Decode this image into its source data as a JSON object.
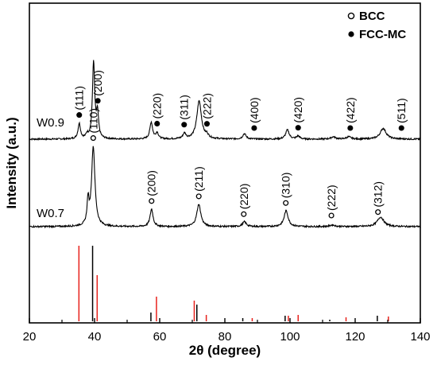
{
  "chart_data": {
    "type": "line",
    "xlabel": "2θ (degree)",
    "ylabel": "Intensity (a.u.)",
    "xlim": [
      20,
      140
    ],
    "x_ticks": [
      20,
      40,
      60,
      80,
      100,
      120,
      140
    ],
    "grid": false,
    "legend": {
      "placement": "top-right",
      "entries": [
        {
          "marker": "open-circle",
          "label": "BCC"
        },
        {
          "marker": "filled-circle",
          "label": "FCC-MC"
        }
      ]
    },
    "series": [
      {
        "name": "W0.9",
        "baseline": 0.0,
        "peaks": [
          {
            "x": 35.3,
            "h": 0.2,
            "w": 0.45
          },
          {
            "x": 37.7,
            "h": 0.05,
            "w": 0.4
          },
          {
            "x": 39.7,
            "h": 1.0,
            "w": 0.42
          },
          {
            "x": 40.9,
            "h": 0.32,
            "w": 0.4
          },
          {
            "x": 57.4,
            "h": 0.22,
            "w": 0.5
          },
          {
            "x": 59.2,
            "h": 0.08,
            "w": 0.5
          },
          {
            "x": 67.6,
            "h": 0.07,
            "w": 0.55
          },
          {
            "x": 72.1,
            "h": 0.5,
            "w": 0.85
          },
          {
            "x": 74.5,
            "h": 0.04,
            "w": 0.55
          },
          {
            "x": 86.0,
            "h": 0.07,
            "w": 0.6
          },
          {
            "x": 99.2,
            "h": 0.12,
            "w": 0.65
          },
          {
            "x": 102.5,
            "h": 0.04,
            "w": 0.6
          },
          {
            "x": 113.3,
            "h": 0.03,
            "w": 0.8
          },
          {
            "x": 118.0,
            "h": 0.03,
            "w": 0.8
          },
          {
            "x": 128.6,
            "h": 0.14,
            "w": 1.1
          }
        ]
      },
      {
        "name": "W0.7",
        "baseline": 0.0,
        "peaks": [
          {
            "x": 38.0,
            "h": 0.3,
            "w": 0.35
          },
          {
            "x": 39.6,
            "h": 1.0,
            "w": 0.62
          },
          {
            "x": 57.5,
            "h": 0.22,
            "w": 0.55
          },
          {
            "x": 72.0,
            "h": 0.28,
            "w": 0.75
          },
          {
            "x": 86.0,
            "h": 0.06,
            "w": 0.7
          },
          {
            "x": 98.8,
            "h": 0.2,
            "w": 0.75
          },
          {
            "x": 113.0,
            "h": 0.02,
            "w": 0.9
          },
          {
            "x": 127.8,
            "h": 0.12,
            "w": 1.2
          }
        ]
      }
    ],
    "reference_lines": {
      "red": [
        {
          "x": 35.2,
          "h": 0.95
        },
        {
          "x": 40.8,
          "h": 0.58
        },
        {
          "x": 59.0,
          "h": 0.31
        },
        {
          "x": 70.6,
          "h": 0.26
        },
        {
          "x": 74.3,
          "h": 0.08
        },
        {
          "x": 88.4,
          "h": 0.04
        },
        {
          "x": 99.5,
          "h": 0.07
        },
        {
          "x": 102.5,
          "h": 0.08
        },
        {
          "x": 117.2,
          "h": 0.05
        },
        {
          "x": 130.2,
          "h": 0.06
        }
      ],
      "black": [
        {
          "x": 39.4,
          "h": 0.95
        },
        {
          "x": 57.3,
          "h": 0.11
        },
        {
          "x": 71.4,
          "h": 0.21
        },
        {
          "x": 85.5,
          "h": 0.04
        },
        {
          "x": 98.5,
          "h": 0.07
        },
        {
          "x": 112.2,
          "h": 0.02
        },
        {
          "x": 126.8,
          "h": 0.07
        }
      ]
    },
    "annotations": {
      "W0.9": [
        {
          "label": "(111)",
          "x": 35.3,
          "marker": "filled"
        },
        {
          "label": "(200)",
          "x": 41.0,
          "marker": "filled"
        },
        {
          "label": "(220)",
          "x": 59.2,
          "marker": "filled"
        },
        {
          "label": "(311)",
          "x": 67.5,
          "marker": "filled"
        },
        {
          "label": "(222)",
          "x": 74.5,
          "marker": "filled"
        },
        {
          "label": "(400)",
          "x": 89.0,
          "marker": "filled"
        },
        {
          "label": "(420)",
          "x": 102.5,
          "marker": "filled"
        },
        {
          "label": "(422)",
          "x": 118.5,
          "marker": "filled"
        },
        {
          "label": "(511)",
          "x": 134.2,
          "marker": "filled"
        }
      ],
      "W0.7": [
        {
          "label": "(110)",
          "x": 39.6,
          "marker": "open"
        },
        {
          "label": "(200)",
          "x": 57.5,
          "marker": "open"
        },
        {
          "label": "(211)",
          "x": 72.0,
          "marker": "open"
        },
        {
          "label": "(220)",
          "x": 85.8,
          "marker": "open"
        },
        {
          "label": "(310)",
          "x": 98.7,
          "marker": "open"
        },
        {
          "label": "(222)",
          "x": 112.7,
          "marker": "open"
        },
        {
          "label": "(312)",
          "x": 127.0,
          "marker": "open"
        }
      ]
    },
    "colors": {
      "line": "#000000",
      "ref_red": "#e8221c",
      "ref_black": "#000000"
    }
  }
}
